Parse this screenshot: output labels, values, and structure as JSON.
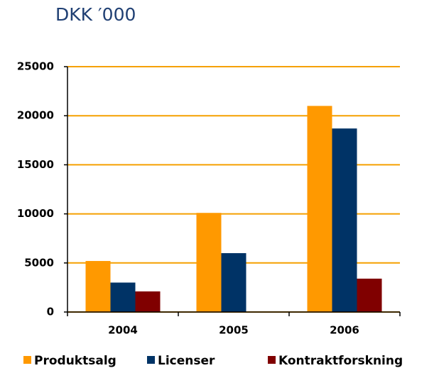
{
  "chart_data": {
    "type": "bar",
    "title": "DKK ′000",
    "categories": [
      "2004",
      "2005",
      "2006"
    ],
    "series": [
      {
        "name": "Produktsalg",
        "color": "#ff9900",
        "values": [
          5200,
          10100,
          21000
        ]
      },
      {
        "name": "Licenser",
        "color": "#003366",
        "values": [
          3000,
          6000,
          18700
        ]
      },
      {
        "name": "Kontraktforskning",
        "color": "#800000",
        "values": [
          2100,
          0,
          3400
        ]
      }
    ],
    "ylim": [
      0,
      25000
    ],
    "yticks": [
      0,
      5000,
      10000,
      15000,
      20000,
      25000
    ],
    "grid": true,
    "grid_color": "#f5a000"
  }
}
